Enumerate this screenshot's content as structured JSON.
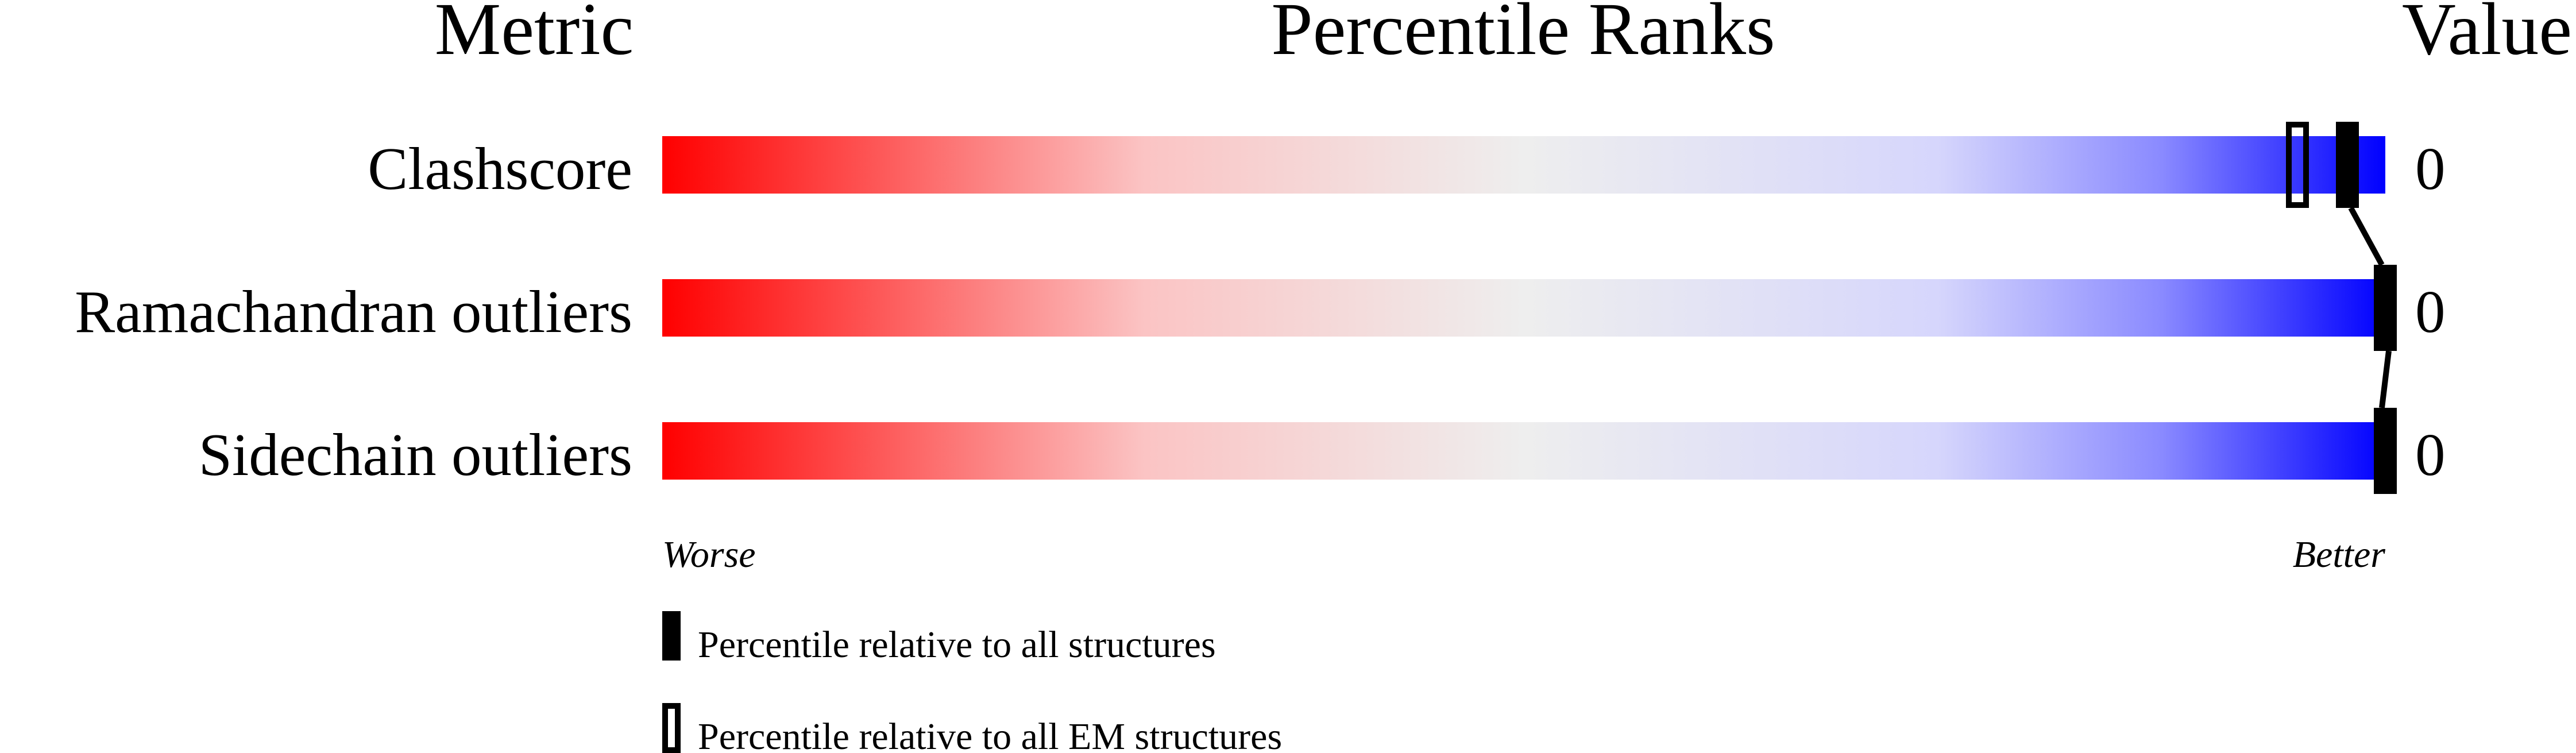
{
  "chart_data": {
    "type": "bar",
    "headers": {
      "metric": "Metric",
      "ranks": "Percentile Ranks",
      "value": "Value"
    },
    "rows": [
      {
        "metric": "Clashscore",
        "value": "0",
        "percentile_all": 97.8,
        "percentile_em": 94.9
      },
      {
        "metric": "Ramachandran outliers",
        "value": "0",
        "percentile_all": 100,
        "percentile_em": null
      },
      {
        "metric": "Sidechain outliers",
        "value": "0",
        "percentile_all": 100,
        "percentile_em": null
      }
    ],
    "axis": {
      "left_label": "Worse",
      "right_label": "Better",
      "range": [
        0,
        100
      ]
    },
    "legend": {
      "all": "Percentile relative to all structures",
      "em": "Percentile relative to all EM structures"
    },
    "colors": {
      "worse": "#ff0000",
      "middle": "#eeeeee",
      "better": "#0000ff",
      "marker": "#000000"
    }
  }
}
